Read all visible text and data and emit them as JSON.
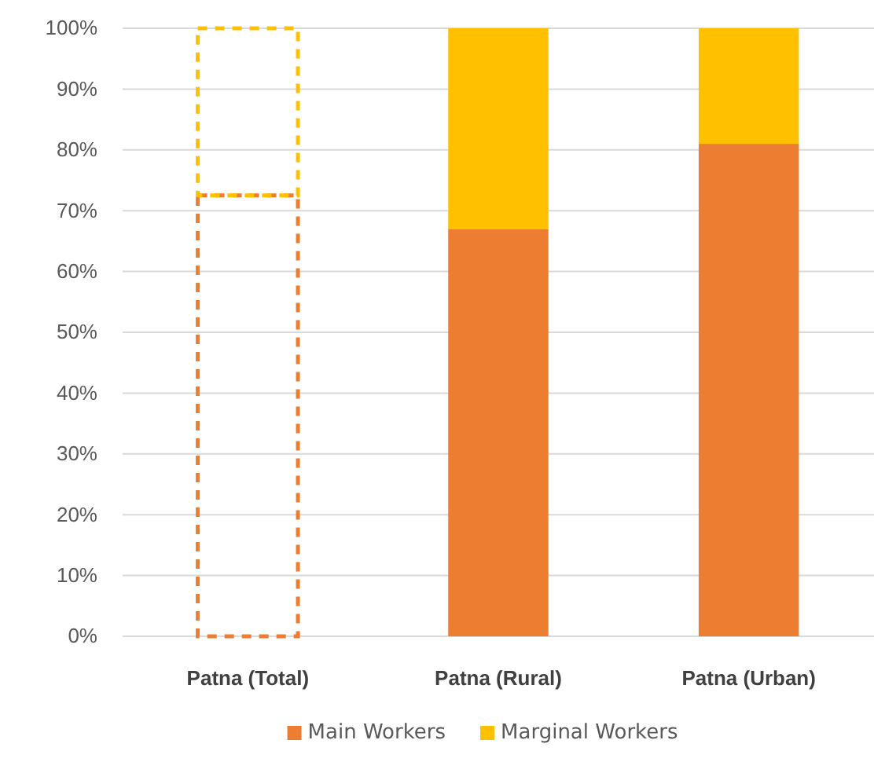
{
  "chart_data": {
    "type": "bar",
    "stacked": true,
    "categories": [
      "Patna (Total)",
      "Patna (Rural)",
      "Patna (Urban)"
    ],
    "series": [
      {
        "name": "Main Workers",
        "color": "#ed7d31",
        "colors": [
          null,
          "#ed7d31",
          "#ed7d31"
        ],
        "values": [
          72.5,
          67,
          81
        ]
      },
      {
        "name": "Marginal Workers",
        "color": "#ffc000",
        "colors": [
          null,
          "#ffc000",
          "#ffc000"
        ],
        "values": [
          27.5,
          33,
          19
        ]
      }
    ],
    "ylim": [
      0,
      100
    ],
    "yticks": [
      {
        "value": 0,
        "label": "0%"
      },
      {
        "value": 10,
        "label": "10%"
      },
      {
        "value": 20,
        "label": "20%"
      },
      {
        "value": 30,
        "label": "30%"
      },
      {
        "value": 40,
        "label": "40%"
      },
      {
        "value": 50,
        "label": "50%"
      },
      {
        "value": 60,
        "label": "60%"
      },
      {
        "value": 70,
        "label": "70%"
      },
      {
        "value": 80,
        "label": "80%"
      },
      {
        "value": 90,
        "label": "90%"
      },
      {
        "value": 100,
        "label": "100%"
      }
    ],
    "grid": "y",
    "legend": "bottom",
    "line_style": "dashed"
  }
}
